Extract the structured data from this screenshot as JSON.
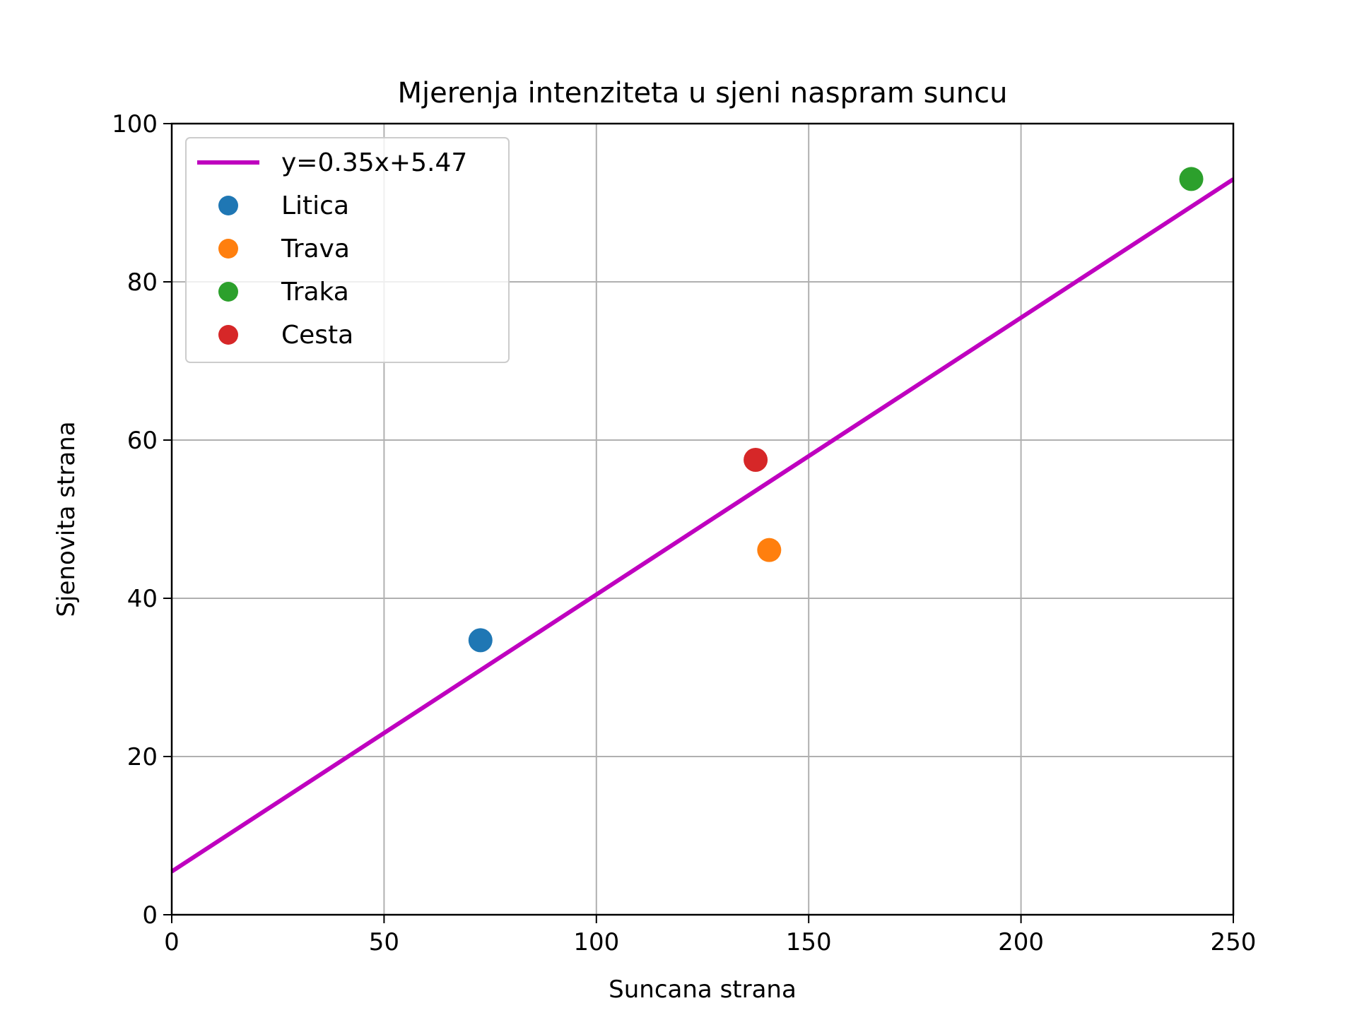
{
  "chart_data": {
    "type": "scatter",
    "title": "Mjerenja intenziteta u sjeni naspram suncu",
    "xlabel": "Suncana strana",
    "ylabel": "Sjenovita strana",
    "xlim": [
      0,
      250
    ],
    "ylim": [
      0,
      100
    ],
    "xticks": [
      0,
      50,
      100,
      150,
      200,
      250
    ],
    "yticks": [
      0,
      20,
      40,
      60,
      80,
      100
    ],
    "grid": true,
    "legend_position": "top-left",
    "fit_line": {
      "label": "y=0.35x+5.47",
      "slope": 0.35,
      "intercept": 5.47,
      "color": "#bf00bf"
    },
    "series": [
      {
        "name": "Litica",
        "color": "#1f77b4",
        "points": [
          [
            72.7,
            34.7
          ]
        ]
      },
      {
        "name": "Trava",
        "color": "#ff7f0e",
        "points": [
          [
            140.7,
            46.1
          ]
        ]
      },
      {
        "name": "Traka",
        "color": "#2ca02c",
        "points": [
          [
            240.1,
            93.0
          ]
        ]
      },
      {
        "name": "Cesta",
        "color": "#d62728",
        "points": [
          [
            137.5,
            57.5
          ]
        ]
      }
    ]
  }
}
